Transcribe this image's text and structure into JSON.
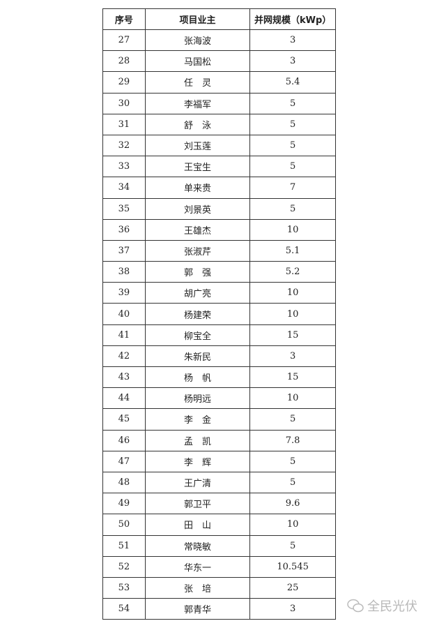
{
  "table": {
    "headers": [
      "序号",
      "项目业主",
      "并网规模（kWp）"
    ],
    "rows": [
      [
        "27",
        "张海波",
        "3"
      ],
      [
        "28",
        "马国松",
        "3"
      ],
      [
        "29",
        "任　灵",
        "5.4"
      ],
      [
        "30",
        "李福军",
        "5"
      ],
      [
        "31",
        "舒　泳",
        "5"
      ],
      [
        "32",
        "刘玉莲",
        "5"
      ],
      [
        "33",
        "王宝生",
        "5"
      ],
      [
        "34",
        "单来贵",
        "7"
      ],
      [
        "35",
        "刘景英",
        "5"
      ],
      [
        "36",
        "王雄杰",
        "10"
      ],
      [
        "37",
        "张淑芹",
        "5.1"
      ],
      [
        "38",
        "郭　强",
        "5.2"
      ],
      [
        "39",
        "胡广亮",
        "10"
      ],
      [
        "40",
        "杨建荣",
        "10"
      ],
      [
        "41",
        "柳宝全",
        "15"
      ],
      [
        "42",
        "朱新民",
        "3"
      ],
      [
        "43",
        "杨　帆",
        "15"
      ],
      [
        "44",
        "杨明远",
        "10"
      ],
      [
        "45",
        "李　金",
        "5"
      ],
      [
        "46",
        "孟　凯",
        "7.8"
      ],
      [
        "47",
        "李　辉",
        "5"
      ],
      [
        "48",
        "王广清",
        "5"
      ],
      [
        "49",
        "郭卫平",
        "9.6"
      ],
      [
        "50",
        "田　山",
        "10"
      ],
      [
        "51",
        "常晓敏",
        "5"
      ],
      [
        "52",
        "华东一",
        "10.545"
      ],
      [
        "53",
        "张　培",
        "25"
      ],
      [
        "54",
        "郭青华",
        "3"
      ]
    ]
  },
  "watermark": {
    "text": "全民光伏",
    "icon": "wechat-icon"
  }
}
